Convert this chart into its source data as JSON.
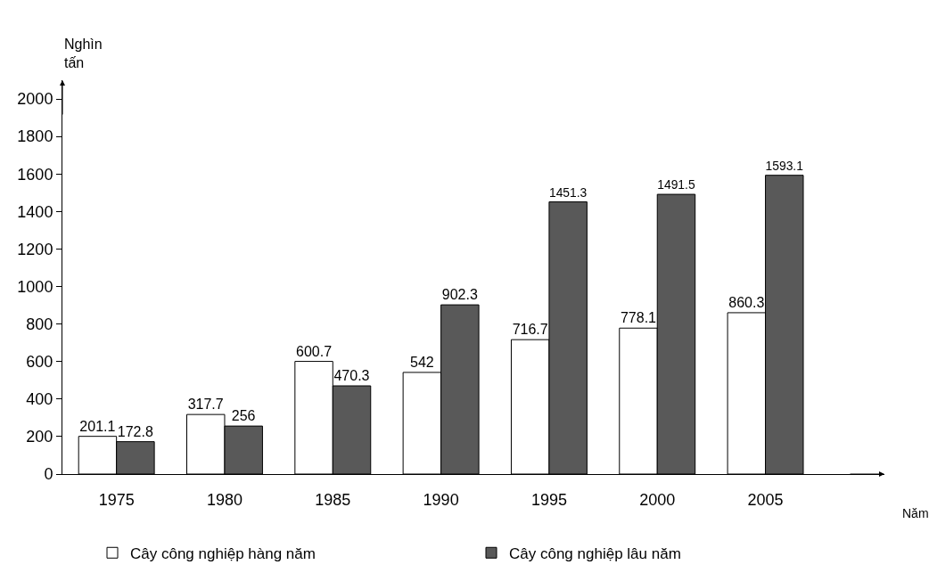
{
  "chart_data": {
    "type": "bar",
    "categories": [
      "1975",
      "1980",
      "1985",
      "1990",
      "1995",
      "2000",
      "2005"
    ],
    "series": [
      {
        "name": "Cây công nghiệp hàng năm",
        "color": "#ffffff",
        "values": [
          201.1,
          317.7,
          600.7,
          542,
          716.7,
          778.1,
          860.3
        ]
      },
      {
        "name": "Cây công nghiệp lâu năm",
        "color": "#595959",
        "values": [
          172.8,
          256,
          470.3,
          902.3,
          1451.3,
          1491.5,
          1593.1
        ]
      }
    ],
    "ylabel": "Nghìn tấn",
    "xlabel": "Năm",
    "ylim": [
      0,
      2100
    ],
    "yticks": [
      0,
      200,
      400,
      600,
      800,
      1000,
      1200,
      1400,
      1600,
      1800,
      2000
    ],
    "data_labels": true,
    "grid": false,
    "legend": "bottom"
  }
}
